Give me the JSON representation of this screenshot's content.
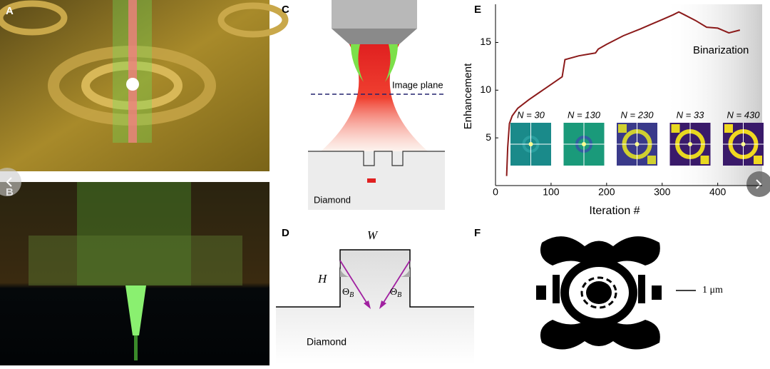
{
  "panel_labels": [
    "A",
    "B",
    "C",
    "D",
    "E",
    "F"
  ],
  "panel_c": {
    "image_plane": "Image plane",
    "material": "Diamond"
  },
  "panel_d": {
    "width": "W",
    "height": "H",
    "angle": {
      "symbol": "Θ",
      "subscript": "B"
    },
    "material": "Diamond"
  },
  "panel_f": {
    "scale_bar": "1 μm"
  },
  "chart_data": {
    "type": "line",
    "annotation": "Binarization",
    "x_label": "Iteration #",
    "y_label": "Enhancement",
    "x": [
      20,
      22,
      25,
      30,
      40,
      60,
      80,
      100,
      120,
      125,
      150,
      170,
      180,
      185,
      200,
      230,
      260,
      280,
      300,
      320,
      330,
      340,
      360,
      380,
      400,
      420,
      440
    ],
    "series": [
      {
        "color": "#8b1a1a",
        "values": [
          1.0,
          4.0,
          6.5,
          7.3,
          8.1,
          9.0,
          9.8,
          10.6,
          11.4,
          13.2,
          13.6,
          13.8,
          13.9,
          14.3,
          14.8,
          15.7,
          16.4,
          16.9,
          17.4,
          17.9,
          18.2,
          17.9,
          17.3,
          16.6,
          16.5,
          16.0,
          16.3
        ]
      }
    ],
    "xlim": [
      0,
      480
    ],
    "ylim": [
      0,
      19
    ],
    "xticks": [
      0,
      100,
      200,
      300,
      400
    ],
    "yticks": [
      5,
      10,
      15
    ],
    "insets": [
      "N = 30",
      "N = 130",
      "N = 230",
      "N = 33",
      "N = 430"
    ]
  }
}
